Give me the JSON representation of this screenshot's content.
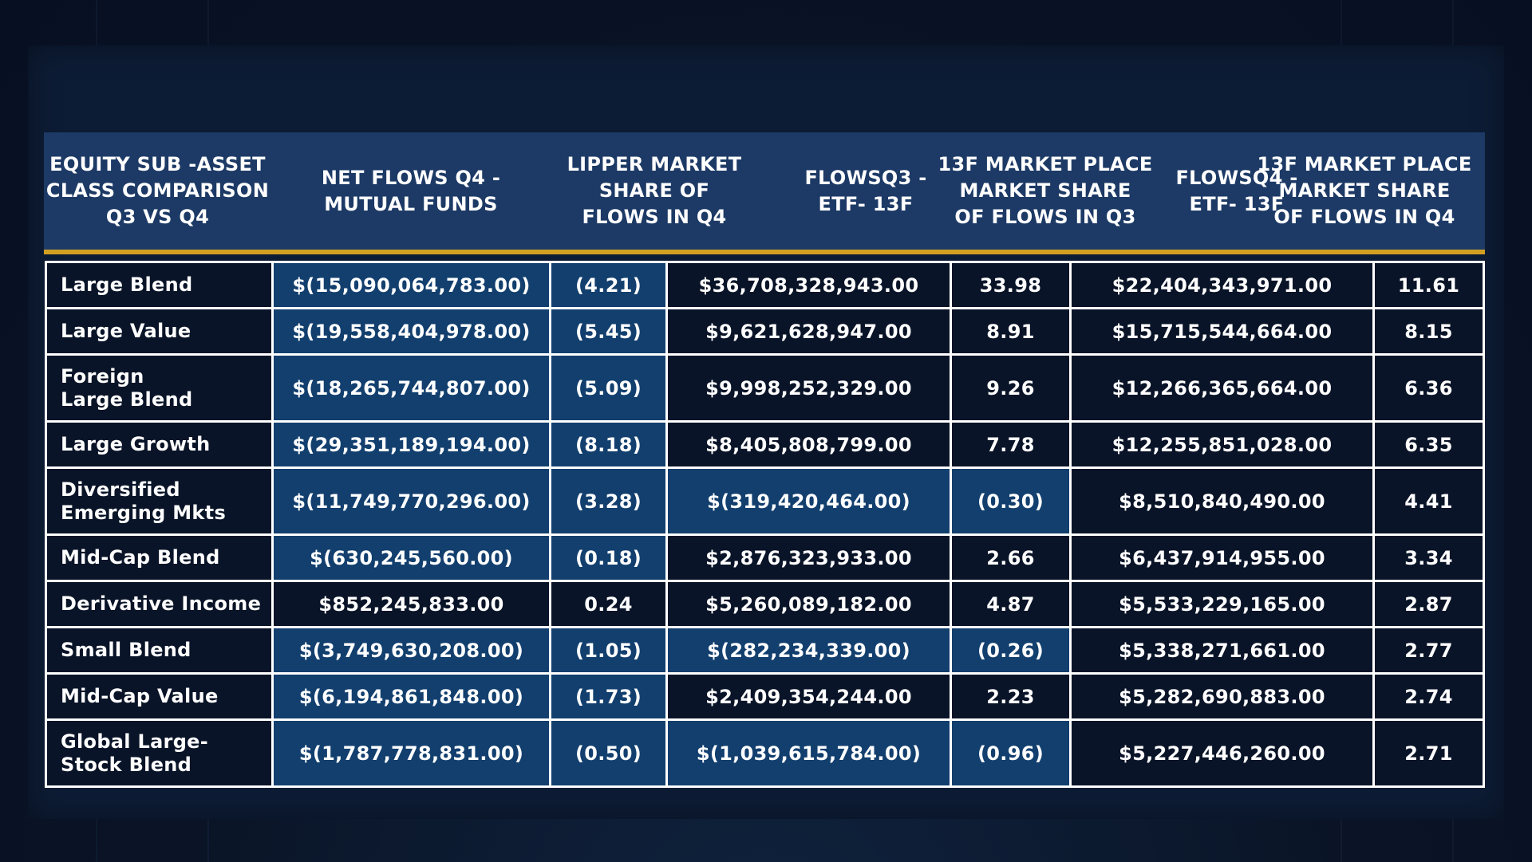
{
  "chart_data": {
    "type": "table",
    "columns": [
      "EQUITY SUB -ASSET\nCLASS COMPARISON\nQ3 VS Q4",
      "NET FLOWS Q4 -\nMUTUAL FUNDS",
      "LIPPER MARKET\nSHARE OF\nFLOWS IN Q4",
      "FLOWSQ3 -\nETF- 13F",
      "13F MARKET PLACE\nMARKET SHARE\nOF FLOWS IN Q3",
      "FLOWSQ4 -\nETF- 13F",
      "13F MARKET PLACE\nMARKET SHARE\nOF FLOWS IN Q4"
    ],
    "rows": [
      [
        "Large Blend",
        "$(15,090,064,783.00)",
        "(4.21)",
        "$36,708,328,943.00",
        "33.98",
        "$22,404,343,971.00",
        "11.61"
      ],
      [
        "Large Value",
        "$(19,558,404,978.00)",
        "(5.45)",
        "$9,621,628,947.00",
        "8.91",
        "$15,715,544,664.00",
        "8.15"
      ],
      [
        "Foreign\nLarge Blend",
        "$(18,265,744,807.00)",
        "(5.09)",
        "$9,998,252,329.00",
        "9.26",
        "$12,266,365,664.00",
        "6.36"
      ],
      [
        "Large Growth",
        "$(29,351,189,194.00)",
        "(8.18)",
        "$8,405,808,799.00",
        "7.78",
        "$12,255,851,028.00",
        "6.35"
      ],
      [
        "Diversified\nEmerging Mkts",
        "$(11,749,770,296.00)",
        "(3.28)",
        "$(319,420,464.00)",
        "(0.30)",
        "$8,510,840,490.00",
        "4.41"
      ],
      [
        "Mid-Cap Blend",
        "$(630,245,560.00)",
        "(0.18)",
        "$2,876,323,933.00",
        "2.66",
        "$6,437,914,955.00",
        "3.34"
      ],
      [
        "Derivative Income",
        "$852,245,833.00",
        "0.24",
        "$5,260,089,182.00",
        "4.87",
        "$5,533,229,165.00",
        "2.87"
      ],
      [
        "Small Blend",
        "$(3,749,630,208.00)",
        "(1.05)",
        "$(282,234,339.00)",
        "(0.26)",
        "$5,338,271,661.00",
        "2.77"
      ],
      [
        "Mid-Cap Value",
        "$(6,194,861,848.00)",
        "(1.73)",
        "$2,409,354,244.00",
        "2.23",
        "$5,282,690,883.00",
        "2.74"
      ],
      [
        "Global Large-\nStock Blend",
        "$(1,787,778,831.00)",
        "(0.50)",
        "$(1,039,615,784.00)",
        "(0.96)",
        "$5,227,446,260.00",
        "2.71"
      ]
    ]
  },
  "colors": {
    "header_bg": "#1d3a66",
    "header_rule": "#d2a021",
    "negative_cell_bg": "#123f6e",
    "cell_bg": "#0a1428",
    "grid_line": "#ffffff"
  }
}
